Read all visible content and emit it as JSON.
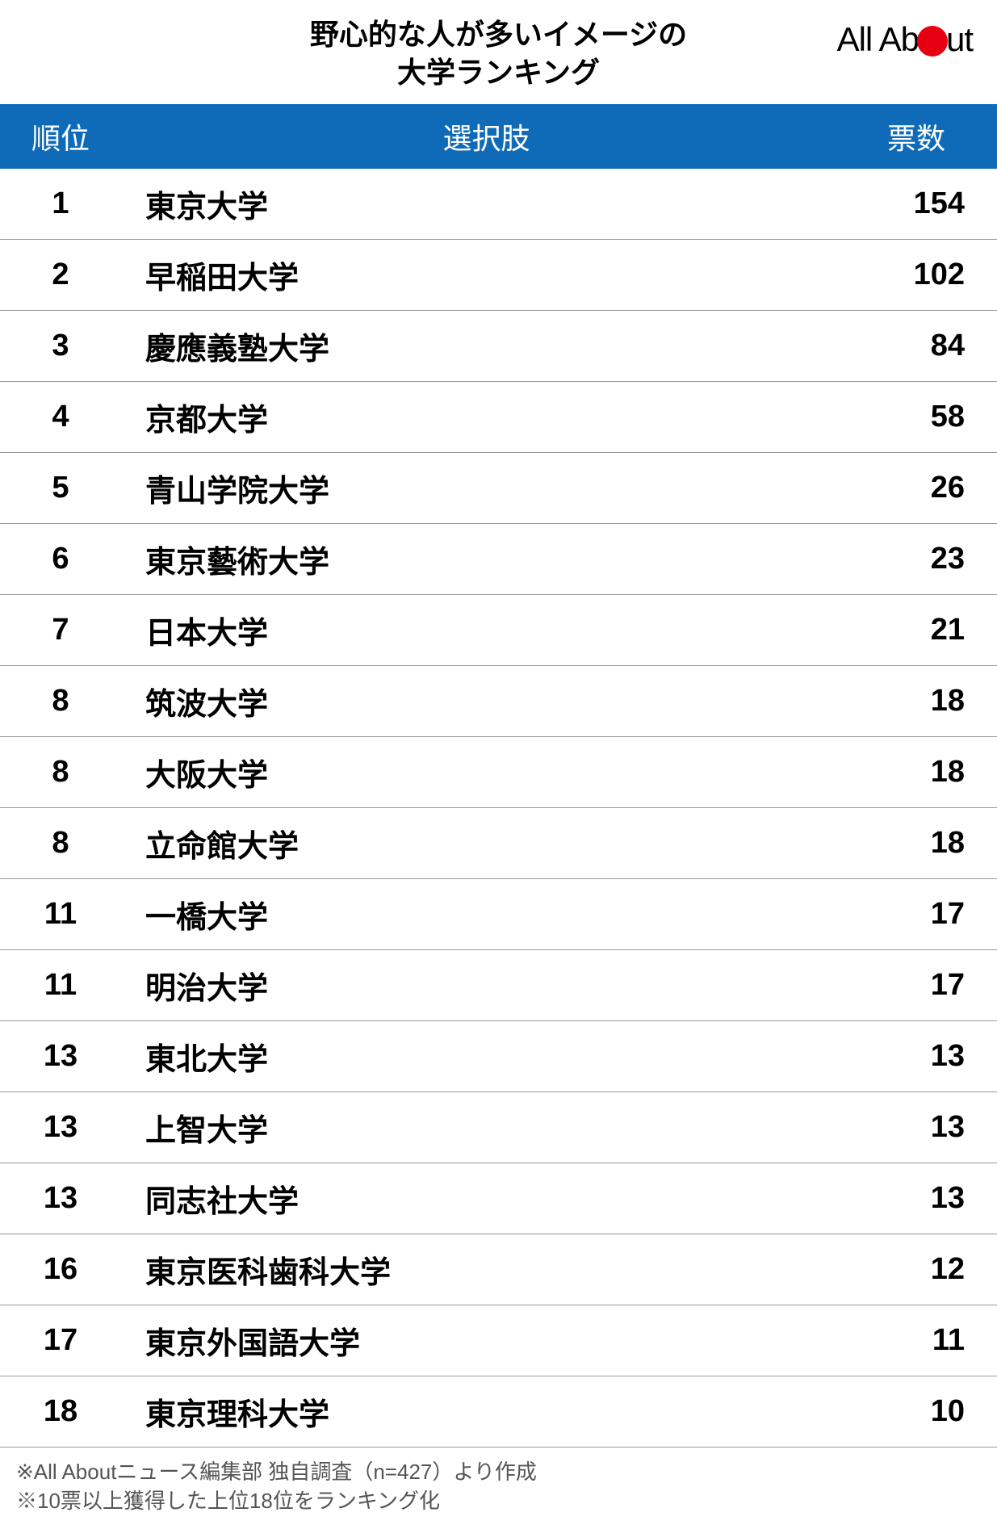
{
  "title_line1": "野心的な人が多いイメージの",
  "title_line2": "大学ランキング",
  "logo": {
    "part1": "All Ab",
    "part2": "ut"
  },
  "columns": {
    "rank": "順位",
    "option": "選択肢",
    "votes": "票数"
  },
  "rows": [
    {
      "rank": "1",
      "option": "東京大学",
      "votes": "154"
    },
    {
      "rank": "2",
      "option": "早稲田大学",
      "votes": "102"
    },
    {
      "rank": "3",
      "option": "慶應義塾大学",
      "votes": "84"
    },
    {
      "rank": "4",
      "option": "京都大学",
      "votes": "58"
    },
    {
      "rank": "5",
      "option": "青山学院大学",
      "votes": "26"
    },
    {
      "rank": "6",
      "option": "東京藝術大学",
      "votes": "23"
    },
    {
      "rank": "7",
      "option": "日本大学",
      "votes": "21"
    },
    {
      "rank": "8",
      "option": "筑波大学",
      "votes": "18"
    },
    {
      "rank": "8",
      "option": "大阪大学",
      "votes": "18"
    },
    {
      "rank": "8",
      "option": "立命館大学",
      "votes": "18"
    },
    {
      "rank": "11",
      "option": "一橋大学",
      "votes": "17"
    },
    {
      "rank": "11",
      "option": "明治大学",
      "votes": "17"
    },
    {
      "rank": "13",
      "option": "東北大学",
      "votes": "13"
    },
    {
      "rank": "13",
      "option": "上智大学",
      "votes": "13"
    },
    {
      "rank": "13",
      "option": "同志社大学",
      "votes": "13"
    },
    {
      "rank": "16",
      "option": "東京医科歯科大学",
      "votes": "12"
    },
    {
      "rank": "17",
      "option": "東京外国語大学",
      "votes": "11"
    },
    {
      "rank": "18",
      "option": "東京理科大学",
      "votes": "10"
    }
  ],
  "footer_line1": "※All Aboutニュース編集部 独自調査（n=427）より作成",
  "footer_line2": "※10票以上獲得した上位18位をランキング化",
  "styles": {
    "header_bg": "#0f6bb8",
    "header_fg": "#ffffff",
    "logo_dot_color": "#e60012",
    "row_border_color": "#999999",
    "title_fontsize": 36,
    "header_fontsize": 36,
    "row_fontsize": 38,
    "footer_fontsize": 26,
    "footer_color": "#555555",
    "col_widths": {
      "rank": 150,
      "votes": 180
    }
  }
}
